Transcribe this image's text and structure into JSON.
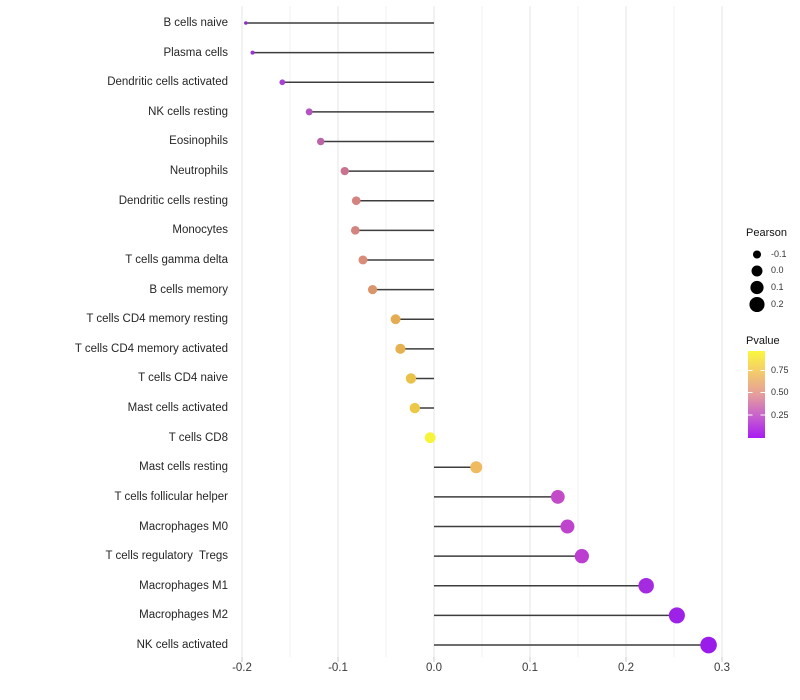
{
  "figure": {
    "background": "#ffffff"
  },
  "chart_data": {
    "type": "lollipop",
    "orientation": "horizontal",
    "title": "",
    "xlabel": "",
    "ylabel": "",
    "x_range": [
      -0.22,
      0.315
    ],
    "x_ticks": [
      "-0.2",
      "-0.1",
      "0.0",
      "0.1",
      "0.2",
      "0.3"
    ],
    "x_tick_values": [
      -0.2,
      -0.1,
      0.0,
      0.1,
      0.2,
      0.3
    ],
    "grid": {
      "major": [
        -0.2,
        -0.1,
        0.0,
        0.1,
        0.2,
        0.3
      ],
      "minor": [
        -0.15,
        -0.05,
        0.05,
        0.15,
        0.25
      ],
      "major_color": "#e6e6e6",
      "minor_color": "#f1f1f1",
      "tick_color": "#c8c8c8"
    },
    "stem_color": "#3d3d3d",
    "items": [
      {
        "label": "B cells naive",
        "pearson": -0.196,
        "color": "#8833c4"
      },
      {
        "label": "Plasma cells",
        "pearson": -0.189,
        "color": "#9934ce"
      },
      {
        "label": "Dendritic cells activated",
        "pearson": -0.158,
        "color": "#a643d4"
      },
      {
        "label": "NK cells resting",
        "pearson": -0.13,
        "color": "#b156bc"
      },
      {
        "label": "Eosinophils",
        "pearson": -0.118,
        "color": "#bc64a6"
      },
      {
        "label": "Neutrophils",
        "pearson": -0.093,
        "color": "#c97391"
      },
      {
        "label": "Dendritic cells resting",
        "pearson": -0.081,
        "color": "#d48480"
      },
      {
        "label": "Monocytes",
        "pearson": -0.082,
        "color": "#d4847e"
      },
      {
        "label": "T cells gamma delta",
        "pearson": -0.074,
        "color": "#d98c77"
      },
      {
        "label": "B cells memory",
        "pearson": -0.064,
        "color": "#dc946b"
      },
      {
        "label": "T cells CD4 memory resting",
        "pearson": -0.04,
        "color": "#e5ac52"
      },
      {
        "label": "T cells CD4 memory activated",
        "pearson": -0.035,
        "color": "#e6b14e"
      },
      {
        "label": "T cells CD4 naive",
        "pearson": -0.024,
        "color": "#ebc249"
      },
      {
        "label": "Mast cells activated",
        "pearson": -0.02,
        "color": "#ecc847"
      },
      {
        "label": "T cells CD8",
        "pearson": -0.004,
        "color": "#f7f53b"
      },
      {
        "label": "Mast cells resting",
        "pearson": 0.044,
        "color": "#efba60"
      },
      {
        "label": "T cells follicular helper",
        "pearson": 0.129,
        "color": "#c44bc8"
      },
      {
        "label": "Macrophages M0",
        "pearson": 0.139,
        "color": "#bf44cd"
      },
      {
        "label": "T cells regulatory  Tregs",
        "pearson": 0.154,
        "color": "#bc3ed1"
      },
      {
        "label": "Macrophages M1",
        "pearson": 0.221,
        "color": "#a42be0"
      },
      {
        "label": "Macrophages M2",
        "pearson": 0.253,
        "color": "#9e21e7"
      },
      {
        "label": "NK cells activated",
        "pearson": 0.286,
        "color": "#9a1bea"
      }
    ],
    "legend": {
      "size": {
        "title": "Pearson",
        "labels": [
          "-0.1",
          "0.0",
          "0.1",
          "0.2"
        ],
        "values": [
          -0.1,
          0.0,
          0.1,
          0.2
        ],
        "dot_color": "#000000"
      },
      "color": {
        "title": "Pvalue",
        "labels": [
          "0.75",
          "0.50",
          "0.25"
        ],
        "values": [
          0.75,
          0.5,
          0.25
        ],
        "gradient_bottom_to_top": [
          "#a81cf2",
          "#c760ce",
          "#e59e9b",
          "#f3c96c",
          "#faf73f"
        ],
        "range": [
          0.0,
          0.98
        ]
      }
    }
  }
}
